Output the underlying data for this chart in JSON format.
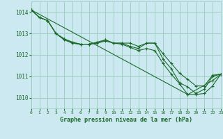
{
  "title": "Graphe pression niveau de la mer (hPa)",
  "background_color": "#cce8f0",
  "grid_color": "#99ccbb",
  "line_color": "#1a6b2a",
  "xlim": [
    0,
    23
  ],
  "ylim": [
    1009.5,
    1014.5
  ],
  "yticks": [
    1010,
    1011,
    1012,
    1013,
    1014
  ],
  "xticks": [
    0,
    1,
    2,
    3,
    4,
    5,
    6,
    7,
    8,
    9,
    10,
    11,
    12,
    13,
    14,
    15,
    16,
    17,
    18,
    19,
    20,
    21,
    22,
    23
  ],
  "series": [
    [
      1014.1,
      1013.75,
      1013.6,
      1013.0,
      1012.75,
      1012.55,
      1012.5,
      1012.5,
      1012.55,
      1012.7,
      1012.55,
      1012.55,
      1012.55,
      1012.4,
      1012.55,
      1012.55,
      1012.05,
      1011.6,
      1011.15,
      1010.85,
      1010.55,
      1010.55,
      1011.05,
      1011.1
    ],
    [
      1014.1,
      1013.75,
      1013.6,
      1013.0,
      1012.75,
      1012.6,
      1012.5,
      1012.5,
      1012.6,
      1012.7,
      1012.55,
      1012.55,
      1012.4,
      1012.3,
      1012.55,
      1012.55,
      1011.8,
      1011.35,
      1010.7,
      1010.5,
      1010.2,
      1010.4,
      1011.0,
      1011.1
    ],
    [
      1014.1,
      1013.75,
      1013.6,
      1013.0,
      1012.7,
      1012.55,
      1012.5,
      1012.5,
      1012.55,
      1012.65,
      1012.55,
      1012.5,
      1012.35,
      1012.2,
      1012.3,
      1012.2,
      1011.6,
      1011.1,
      1010.65,
      1010.15,
      1010.15,
      1010.2,
      1010.55,
      1011.1
    ],
    [
      1014.1,
      null,
      null,
      null,
      null,
      null,
      null,
      null,
      null,
      null,
      null,
      null,
      null,
      null,
      null,
      null,
      null,
      null,
      null,
      1010.15,
      null,
      null,
      1010.8,
      1011.1
    ]
  ]
}
